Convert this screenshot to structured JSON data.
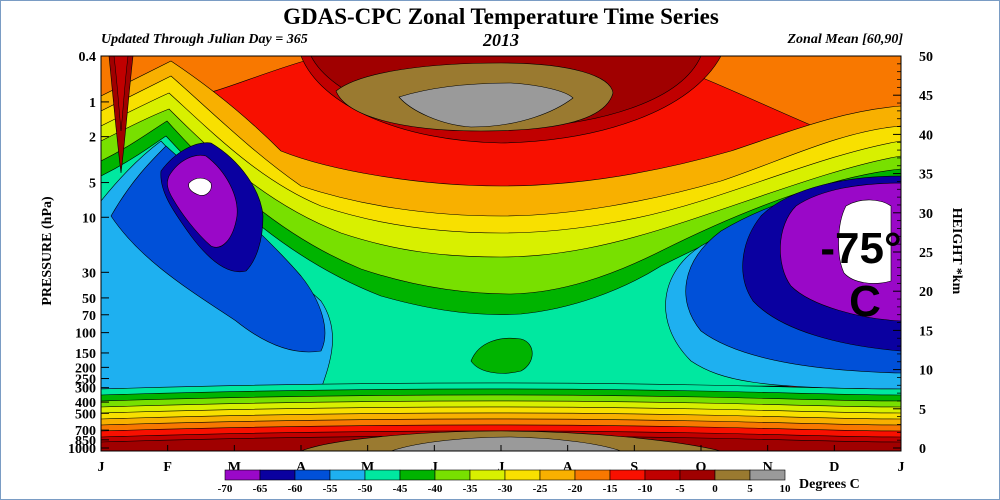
{
  "chart_data": {
    "type": "heatmap",
    "title": "GDAS-CPC Zonal Temperature Time Series",
    "subtitle_left": "Updated Through Julian Day = 365",
    "subtitle_center": "2013",
    "subtitle_right": "Zonal Mean [60,90]",
    "ylabel_left": "PRESSURE (hPa)",
    "ylabel_right": "HEIGHT *km",
    "pressure_ticks": [
      "0.4",
      "1",
      "2",
      "5",
      "10",
      "30",
      "50",
      "70",
      "100",
      "150",
      "200",
      "250",
      "300",
      "400",
      "500",
      "700",
      "850",
      "1000"
    ],
    "height_ticks": [
      "50",
      "45",
      "40",
      "35",
      "30",
      "25",
      "20",
      "15",
      "10",
      "5",
      "0"
    ],
    "month_ticks": [
      "J",
      "F",
      "M",
      "A",
      "M",
      "J",
      "J",
      "A",
      "S",
      "O",
      "N",
      "D",
      "J"
    ],
    "colorbar": {
      "levels": [
        "-70",
        "-65",
        "-60",
        "-55",
        "-50",
        "-45",
        "-40",
        "-35",
        "-30",
        "-25",
        "-20",
        "-15",
        "-10",
        "-5",
        "0",
        "5",
        "10"
      ],
      "colors": [
        "#9a08c8",
        "#0a00a0",
        "#0050d8",
        "#1eb0f0",
        "#00e8a0",
        "#00b400",
        "#78e000",
        "#d8f000",
        "#f8e000",
        "#f8b000",
        "#f87800",
        "#f81000",
        "#c00000",
        "#a00000",
        "#9a7a30",
        "#9a9a9a"
      ],
      "units": "Degrees C"
    },
    "annotation": "-75°\nC",
    "fill_extremes": {
      "cold": "#ffffff",
      "warm": "#9a9a9a"
    }
  }
}
